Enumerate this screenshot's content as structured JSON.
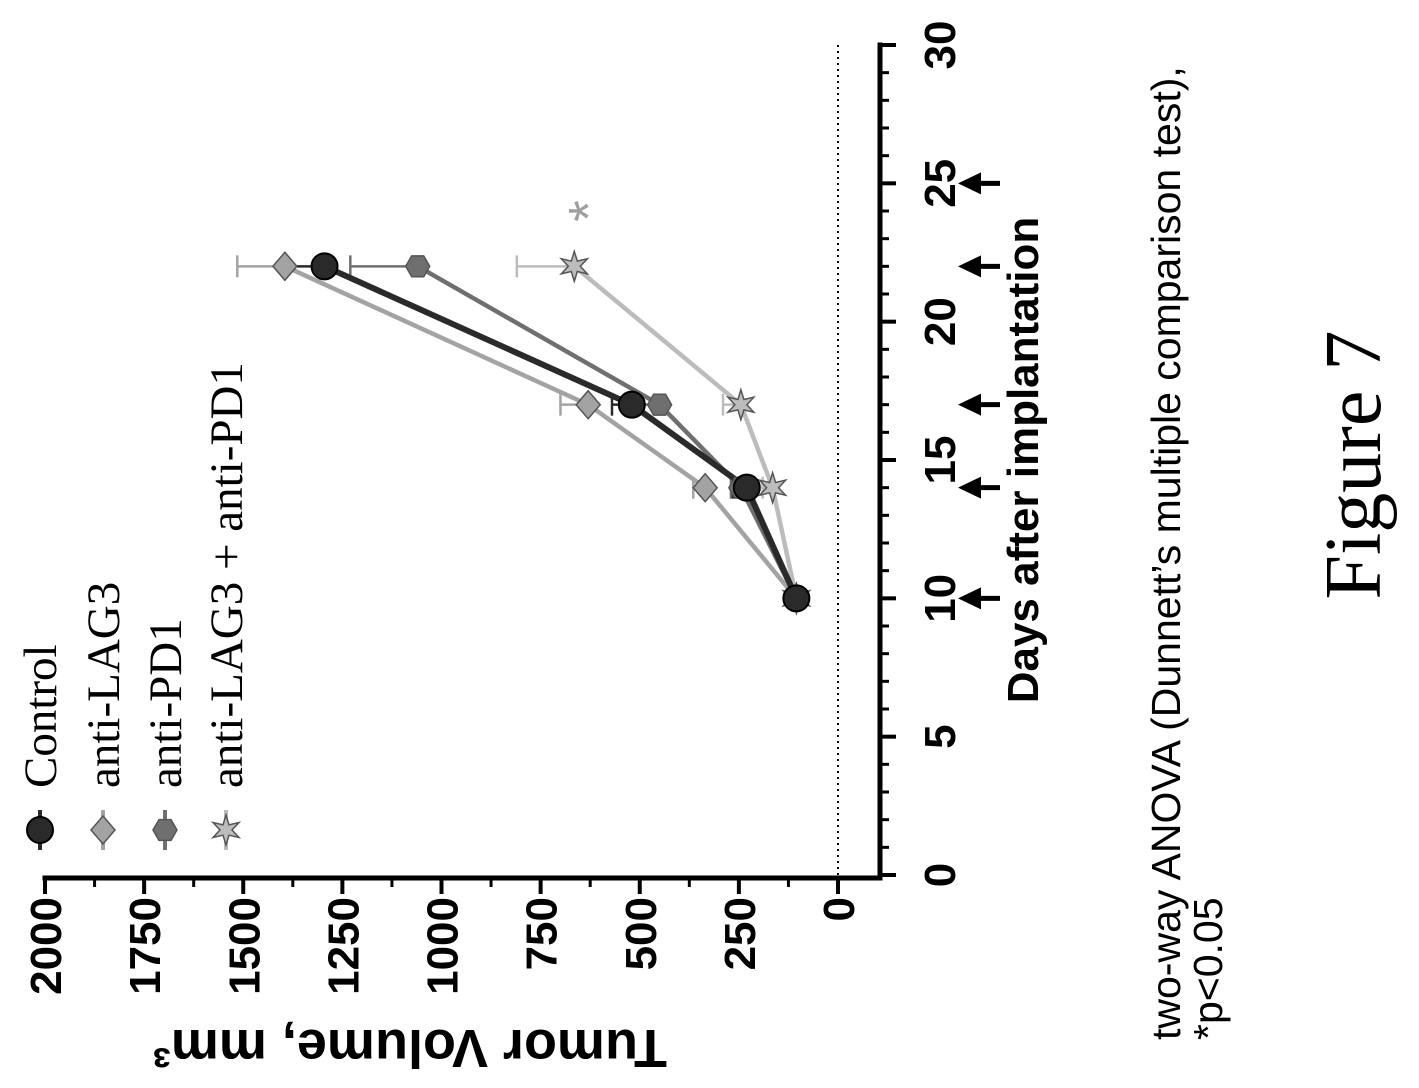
{
  "chart_data": {
    "type": "line",
    "xlabel": "Days after implantation",
    "ylabel": "Tumor Volume, mm³",
    "xlim": [
      0,
      30
    ],
    "ylim": [
      0,
      2000
    ],
    "x_ticks": [
      0,
      5,
      10,
      15,
      20,
      25,
      30
    ],
    "y_ticks": [
      0,
      250,
      500,
      750,
      1000,
      1250,
      1500,
      1750,
      2000
    ],
    "x": [
      10,
      14,
      17,
      22
    ],
    "series": [
      {
        "name": "Control",
        "marker": "circle",
        "color": "#2a2a2a",
        "values": [
          105,
          230,
          520,
          1295
        ],
        "error": [
          5,
          35,
          50,
          100
        ]
      },
      {
        "name": "anti-LAG3",
        "marker": "diamond",
        "color": "#a3a3a3",
        "values": [
          105,
          335,
          630,
          1395
        ],
        "error": [
          5,
          30,
          70,
          120
        ]
      },
      {
        "name": "anti-PD1",
        "marker": "hexagon",
        "color": "#6f6f6f",
        "values": [
          105,
          245,
          450,
          1060
        ],
        "error": [
          5,
          25,
          50,
          170
        ]
      },
      {
        "name": "anti-LAG3 + anti-PD1",
        "marker": "star",
        "color": "#bcbcbc",
        "values": [
          105,
          165,
          245,
          665
        ],
        "error": [
          5,
          25,
          45,
          145
        ]
      }
    ],
    "zero_line": true,
    "treatment_arrows": [
      10,
      14,
      17,
      22,
      25
    ],
    "annotations": [
      {
        "text": "*",
        "x": 24,
        "y": 665
      }
    ],
    "grid": false,
    "legend": "top-left"
  },
  "footnote": {
    "line1": "two-way ANOVA (Dunnett’s multiple comparison test),",
    "line2": "*p<0.05"
  },
  "figure_label": "Figure 7"
}
